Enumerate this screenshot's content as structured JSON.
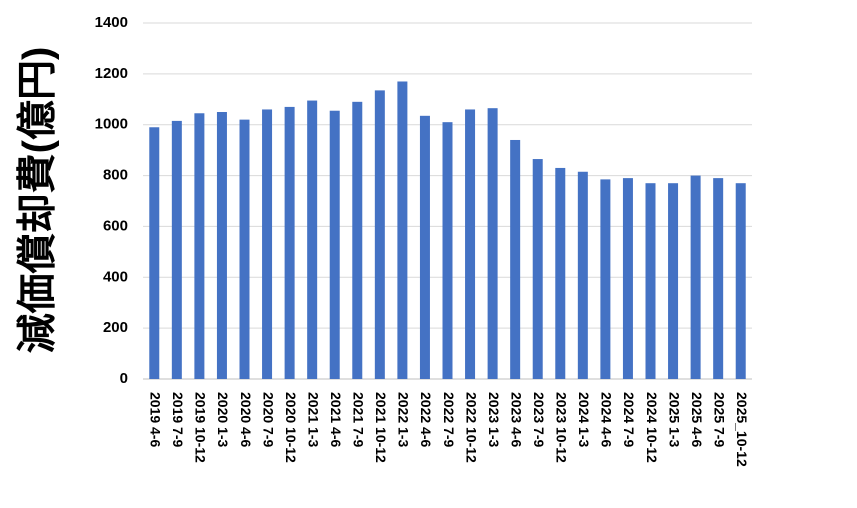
{
  "chart_data": {
    "type": "bar",
    "y_label": "減価償却費(億円)",
    "categories": [
      "2019 4-6",
      "2019 7-9",
      "2019 10-12",
      "2020 1-3",
      "2020 4-6",
      "2020 7-9",
      "2020 10-12",
      "2021 1-3",
      "2021 4-6",
      "2021 7-9",
      "2021 10-12",
      "2022 1-3",
      "2022 4-6",
      "2022 7-9",
      "2022 10-12",
      "2023 1-3",
      "2023 4-6",
      "2023 7-9",
      "2023 10-12",
      "2024 1-3",
      "2024 4-6",
      "2024 7-9",
      "2024 10-12",
      "2025 1-3",
      "2025 4-6",
      "2025 7-9",
      "2025_10-12"
    ],
    "values": [
      990,
      1015,
      1045,
      1050,
      1020,
      1060,
      1070,
      1095,
      1055,
      1090,
      1135,
      1170,
      1035,
      1010,
      1060,
      1065,
      940,
      865,
      830,
      815,
      785,
      790,
      770,
      770,
      800,
      790,
      770
    ],
    "color": "#4472c4",
    "ylim": [
      0,
      1400
    ],
    "yticks": [
      0,
      200,
      400,
      600,
      800,
      1000,
      1200,
      1400
    ],
    "grid": true
  }
}
